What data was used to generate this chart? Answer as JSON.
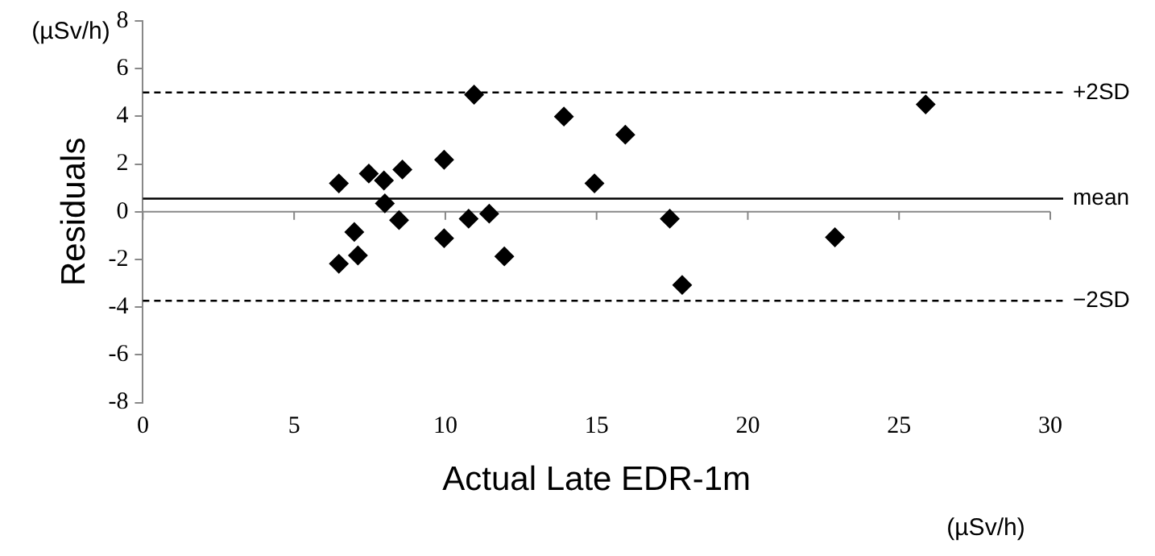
{
  "chart_data": {
    "type": "scatter",
    "xlabel": "Actual Late EDR-1m",
    "ylabel": "Residuals",
    "annotations": [
      "(µSv/h)",
      "(µSv/h)"
    ],
    "xlim": [
      0,
      30
    ],
    "xticks": [
      0,
      5,
      10,
      15,
      20,
      25,
      30
    ],
    "ylim": [
      -8,
      8
    ],
    "yticks": [
      -8,
      -6,
      -4,
      -2,
      0,
      2,
      4,
      6,
      8
    ],
    "marker": "diamond",
    "legend": false,
    "ref_lines": [
      {
        "axis": "y",
        "value": 5.0,
        "label": "+2SD",
        "color": "#000000",
        "line_style": "dashed"
      },
      {
        "axis": "y",
        "value": 0.55,
        "label": "mean",
        "color": "#000000",
        "line_style": "solid"
      },
      {
        "axis": "y",
        "value": -3.73,
        "label": "−2SD",
        "color": "#000000",
        "line_style": "dashed"
      }
    ],
    "series": [
      {
        "color": "#000000",
        "x": [
          6.48,
          6.48,
          6.99,
          7.11,
          7.47,
          7.97,
          8.0,
          8.47,
          8.58,
          9.96,
          9.96,
          10.77,
          10.95,
          11.45,
          11.95,
          13.92,
          14.93,
          15.95,
          17.42,
          17.83,
          22.88,
          25.88
        ],
        "values": [
          1.19,
          -2.18,
          -0.85,
          -1.83,
          1.6,
          1.31,
          0.35,
          -0.35,
          1.77,
          2.18,
          -1.11,
          -0.29,
          4.91,
          -0.08,
          -1.87,
          3.99,
          1.19,
          3.23,
          -0.29,
          -3.07,
          -1.07,
          4.5
        ]
      }
    ]
  }
}
